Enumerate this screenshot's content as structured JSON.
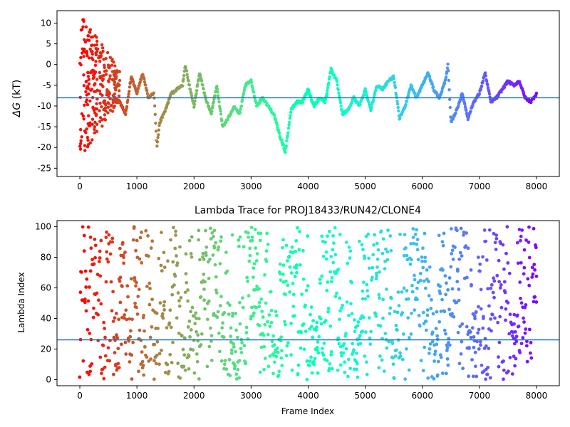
{
  "chart_data": [
    {
      "type": "scatter",
      "title": "",
      "xlabel": "",
      "ylabel": "ΔG (kT)",
      "ylabel_parts": {
        "symbol": "ΔG",
        "unit": " (kT)"
      },
      "xlim": [
        -400,
        8400
      ],
      "ylim": [
        -27,
        13
      ],
      "xticks": [
        0,
        1000,
        2000,
        3000,
        4000,
        5000,
        6000,
        7000,
        8000
      ],
      "yticks": [
        -25,
        -20,
        -15,
        -10,
        -5,
        0,
        5,
        10
      ],
      "hline": -8,
      "color_scale": "rainbow (red at frame 0 to violet at frame 8000)",
      "grid": false,
      "series": [
        {
          "x": [
            0,
            100,
            200,
            300,
            400,
            500,
            600,
            700,
            800,
            900,
            1000,
            1100,
            1200,
            1300,
            1350,
            1400,
            1500,
            1600,
            1700,
            1800,
            1850,
            1900,
            2000,
            2100,
            2200,
            2300,
            2400,
            2500,
            2600,
            2700,
            2800,
            2900,
            3000,
            3100,
            3200,
            3300,
            3400,
            3500,
            3600,
            3700,
            3800,
            3900,
            4000,
            4100,
            4200,
            4300,
            4400,
            4500,
            4600,
            4700,
            4800,
            4900,
            5000,
            5100,
            5200,
            5300,
            5400,
            5500,
            5600,
            5700,
            5800,
            5900,
            6000,
            6100,
            6200,
            6300,
            6400,
            6450,
            6500,
            6600,
            6700,
            6800,
            6900,
            7000,
            7100,
            7200,
            7300,
            7400,
            7500,
            7600,
            7700,
            7800,
            7900,
            8000
          ],
          "y": [
            -10,
            2,
            -5,
            -3,
            -6,
            -4,
            -8,
            -9,
            -12,
            -3,
            -7,
            -2,
            -8,
            -7,
            -20,
            -14,
            -11,
            -7,
            -6,
            -5,
            0,
            -4,
            -10,
            -2,
            -8,
            -12,
            -5,
            -15,
            -13,
            -10,
            -12,
            -5,
            -4,
            -10,
            -8,
            -10,
            -12,
            -17,
            -21,
            -11,
            -9,
            -9,
            -6,
            -10,
            -8,
            -9,
            -1,
            -4,
            -12,
            -11,
            -8,
            -10,
            -6,
            -11,
            -5,
            -6,
            -4,
            -3,
            -13,
            -10,
            -5,
            -8,
            -5,
            -2,
            -6,
            -8,
            -4,
            0,
            -14,
            -11,
            -7,
            -13,
            -9,
            -7,
            -2,
            -9,
            -8,
            -6,
            -4,
            -5,
            -4,
            -8,
            -9,
            -7
          ]
        }
      ]
    },
    {
      "type": "scatter",
      "title": "Lambda Trace for PROJ18433/RUN42/CLONE4",
      "xlabel": "Frame Index",
      "ylabel": "Lambda Index",
      "xlim": [
        -400,
        8400
      ],
      "ylim": [
        -4,
        104
      ],
      "xticks": [
        0,
        1000,
        2000,
        3000,
        4000,
        5000,
        6000,
        7000,
        8000
      ],
      "yticks": [
        0,
        20,
        40,
        60,
        80,
        100
      ],
      "hline": 26,
      "color_scale": "rainbow (red at frame 0 to violet at frame 8000)",
      "grid": false,
      "series": [
        {
          "x_range": [
            0,
            8000
          ],
          "y_range": [
            0,
            100
          ],
          "description_points": [
            [
              20,
              60
            ],
            [
              800,
              15
            ],
            [
              1900,
              90
            ],
            [
              3600,
              40
            ],
            [
              4700,
              95
            ],
            [
              6500,
              100
            ],
            [
              7200,
              98
            ],
            [
              7800,
              99
            ],
            [
              8000,
              50
            ]
          ]
        }
      ]
    }
  ]
}
